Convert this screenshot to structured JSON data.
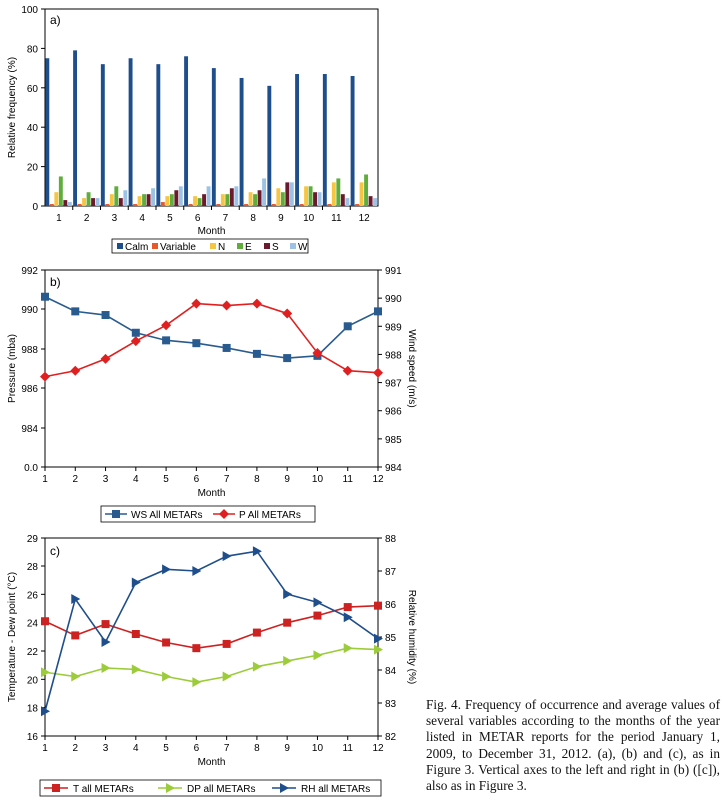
{
  "chart_data": [
    {
      "type": "bar",
      "panel_label": "a)",
      "xlabel": "Month",
      "ylabel": "Relative frequency (%)",
      "ylim": [
        0,
        100
      ],
      "yticks": [
        0,
        20,
        40,
        60,
        80,
        100
      ],
      "categories": [
        "1",
        "2",
        "3",
        "4",
        "5",
        "6",
        "7",
        "8",
        "9",
        "10",
        "11",
        "12"
      ],
      "series": [
        {
          "name": "Calm",
          "color": "#1f4e8c",
          "values": [
            75,
            79,
            72,
            75,
            72,
            76,
            70,
            65,
            61,
            67,
            67,
            66
          ]
        },
        {
          "name": "Variable",
          "color": "#e8582a",
          "values": [
            1,
            1,
            1,
            1,
            2,
            1,
            1,
            1,
            1,
            1,
            1,
            1
          ]
        },
        {
          "name": "N",
          "color": "#f6c542",
          "values": [
            7,
            4,
            6,
            5,
            5,
            5,
            6,
            7,
            9,
            10,
            12,
            12
          ]
        },
        {
          "name": "E",
          "color": "#5fae3c",
          "values": [
            15,
            7,
            10,
            6,
            6,
            4,
            6,
            6,
            7,
            10,
            14,
            16
          ]
        },
        {
          "name": "S",
          "color": "#6b1a2e",
          "values": [
            3,
            4,
            4,
            6,
            8,
            6,
            9,
            8,
            12,
            7,
            6,
            5
          ]
        },
        {
          "name": "W",
          "color": "#9cc3e6",
          "values": [
            2,
            4,
            8,
            9,
            10,
            10,
            10,
            14,
            12,
            7,
            4,
            4
          ]
        }
      ]
    },
    {
      "type": "line",
      "panel_label": "b)",
      "xlabel": "Month",
      "ylabel": "Pressure (mba)",
      "y2label": "Wind speed (m/s)",
      "x": [
        1,
        2,
        3,
        4,
        5,
        6,
        7,
        8,
        9,
        10,
        11,
        12
      ],
      "ylim": [
        0,
        992
      ],
      "yticks": [
        "0.0",
        "984",
        "986",
        "988",
        "990",
        "992"
      ],
      "y2lim": [
        984,
        991
      ],
      "y2ticks": [
        "984",
        "985",
        "986",
        "987",
        "988",
        "989",
        "990",
        "991"
      ],
      "series": [
        {
          "name": "WS All METARs",
          "axis": "right",
          "color": "#2a5b8f",
          "marker": "square",
          "values": [
            990.05,
            989.53,
            989.4,
            988.77,
            988.5,
            988.4,
            988.23,
            988.02,
            987.87,
            987.95,
            989.0,
            989.53
          ]
        },
        {
          "name": "P All METARs",
          "axis": "left",
          "color": "#e02020",
          "marker": "diamond",
          "values": [
            986.6,
            986.9,
            987.5,
            988.4,
            989.2,
            990.3,
            990.2,
            990.3,
            989.8,
            987.8,
            986.9,
            986.8
          ]
        }
      ]
    },
    {
      "type": "line",
      "panel_label": "c)",
      "xlabel": "Month",
      "ylabel": "Temperature - Dew point (°C)",
      "y2label": "Relative humidity  (%)",
      "x": [
        1,
        2,
        3,
        4,
        5,
        6,
        7,
        8,
        9,
        10,
        11,
        12
      ],
      "ylim": [
        16,
        29
      ],
      "yticks": [
        "16",
        "18",
        "20",
        "22",
        "24",
        "26",
        "28",
        "29"
      ],
      "y2lim": [
        82,
        88
      ],
      "y2ticks": [
        "82",
        "83",
        "84",
        "85",
        "86",
        "87",
        "88"
      ],
      "series": [
        {
          "name": "T all METARs",
          "axis": "left",
          "color": "#cc2222",
          "marker": "square",
          "values": [
            24.1,
            23.1,
            23.9,
            23.2,
            22.6,
            22.2,
            22.5,
            23.3,
            24.0,
            24.5,
            25.1,
            25.2
          ]
        },
        {
          "name": "DP all METARs",
          "axis": "left",
          "color": "#9ccc3a",
          "marker": "triangle-right",
          "values": [
            20.5,
            20.2,
            20.8,
            20.7,
            20.2,
            19.8,
            20.2,
            20.9,
            21.3,
            21.7,
            22.2,
            22.1
          ]
        },
        {
          "name": "RH all METARs",
          "axis": "right",
          "color": "#1f4e8c",
          "marker": "triangle-right",
          "values": [
            82.75,
            86.15,
            84.85,
            86.65,
            87.05,
            87.0,
            87.45,
            87.6,
            86.3,
            86.05,
            85.6,
            84.95
          ]
        }
      ]
    }
  ],
  "caption": "Fig. 4. Frequency of occurrence and average values of several variables according to the months of the year listed in METAR reports for the period January 1, 2009, to December 31, 2012. (a), (b) and (c), as in Figure 3. Vertical axes to the left and right in (b) ([c]), also as in Figure 3."
}
